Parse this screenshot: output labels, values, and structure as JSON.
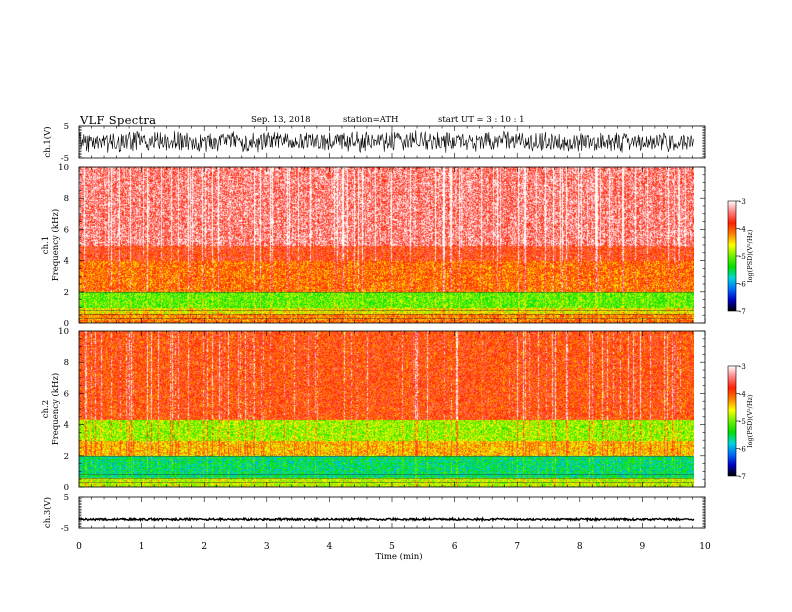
{
  "header": {
    "title": "VLF  Spectra",
    "date": "Sep. 13, 2018",
    "station": "station=ATH",
    "start_ut": "start  UT  =   3  : 10 : 1"
  },
  "chart_data": [
    {
      "type": "line",
      "name": "waveform-ch1",
      "ylabel": "ch.1(V)",
      "yticks": [
        5,
        -5
      ],
      "ylim": [
        -5,
        5
      ],
      "xlim": [
        0,
        10
      ],
      "data_end_min": 9.82,
      "amplitude_v": [
        -3.5,
        3.8
      ]
    },
    {
      "type": "heatmap",
      "name": "spectrogram-ch1",
      "ylabel_1": "ch.1",
      "ylabel_2": "Frequency  (kHz)",
      "yticks": [
        0,
        2,
        4,
        6,
        8,
        10
      ],
      "ylim": [
        0,
        10
      ],
      "xlim": [
        0,
        10
      ],
      "data_end_min": 9.82,
      "bands": [
        {
          "f_khz": [
            0,
            0.25
          ],
          "level": -4.1
        },
        {
          "f_khz": [
            0.25,
            0.6
          ],
          "level": -4.2
        },
        {
          "f_khz": [
            0.6,
            1.0
          ],
          "level": -4.6
        },
        {
          "f_khz": [
            1.0,
            2.0
          ],
          "level": -5.1
        },
        {
          "f_khz": [
            2.0,
            4.0
          ],
          "level": -4.1
        },
        {
          "f_khz": [
            4.0,
            5.0
          ],
          "level": -3.8
        },
        {
          "f_khz": [
            5.0,
            10.0
          ],
          "level": -3.4
        }
      ]
    },
    {
      "type": "heatmap",
      "name": "spectrogram-ch2",
      "ylabel_1": "ch.2",
      "ylabel_2": "Frequency  (kHz)",
      "yticks": [
        0,
        2,
        4,
        6,
        8,
        10
      ],
      "ylim": [
        0,
        10
      ],
      "xlim": [
        0,
        10
      ],
      "data_end_min": 9.82,
      "bands": [
        {
          "f_khz": [
            0,
            0.6
          ],
          "level": -4.8
        },
        {
          "f_khz": [
            0.6,
            2.0
          ],
          "level": -5.6
        },
        {
          "f_khz": [
            2.0,
            3.0
          ],
          "level": -4.4
        },
        {
          "f_khz": [
            3.0,
            4.3
          ],
          "level": -4.9
        },
        {
          "f_khz": [
            4.3,
            10.0
          ],
          "level": -3.9
        }
      ]
    },
    {
      "type": "line",
      "name": "waveform-ch3",
      "ylabel": "ch.3(V)",
      "yticks": [
        5,
        -5
      ],
      "ylim": [
        -5,
        5
      ],
      "xlim": [
        0,
        10
      ],
      "data_end_min": 9.82,
      "amplitude_v": [
        -2.6,
        -1.8
      ]
    }
  ],
  "xaxis": {
    "ticks": [
      0,
      1,
      2,
      3,
      4,
      5,
      6,
      7,
      8,
      9,
      10
    ],
    "label": "Time  (min)"
  },
  "colorbar": {
    "label": "log(PSD)(V²/Hz)",
    "ticks": [
      -3,
      -4,
      -5,
      -6,
      -7
    ],
    "range": [
      -7,
      -3
    ],
    "stops": [
      "#000000",
      "#0000c8",
      "#0070ff",
      "#00d8d8",
      "#00e000",
      "#70f000",
      "#ffff00",
      "#ff8000",
      "#ff2000",
      "#ff8080",
      "#ffffff"
    ]
  }
}
